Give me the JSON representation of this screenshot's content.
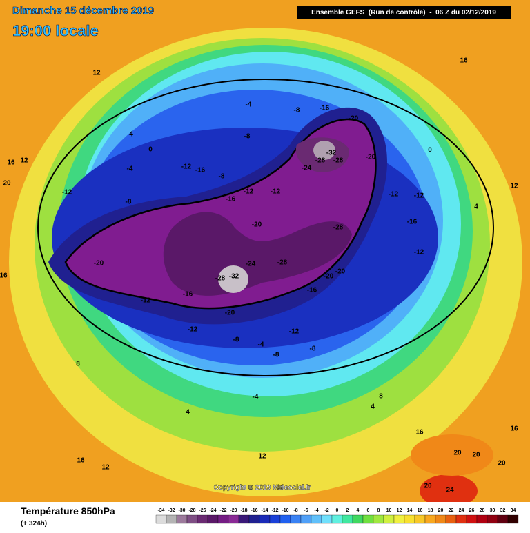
{
  "header": {
    "date": "Dimanche 15 décembre 2019",
    "time": "19:00 locale",
    "run": "Ensemble GEFS  (Run de contrôle)  -  06 Z du 02/12/2019"
  },
  "footer": {
    "parameter": "Température 850hPa",
    "lead": "(+ 324h)",
    "copyright": "Copyright © 2019 Meteociel.fr"
  },
  "legend": {
    "values": [
      -34,
      -32,
      -30,
      -28,
      -26,
      -24,
      -22,
      -20,
      -18,
      -16,
      -14,
      -12,
      -10,
      -8,
      -6,
      -4,
      -2,
      0,
      2,
      4,
      6,
      8,
      10,
      12,
      14,
      16,
      18,
      20,
      22,
      24,
      26,
      28,
      30,
      32,
      34
    ],
    "colors": [
      "#dcdcdc",
      "#b4b4b4",
      "#9c7a9c",
      "#7e4e84",
      "#6a2a72",
      "#5a1868",
      "#741c84",
      "#8a2a96",
      "#3a1878",
      "#202090",
      "#1a2ab8",
      "#1a40d8",
      "#2060f0",
      "#3a82f4",
      "#50a0f8",
      "#60c0fa",
      "#70e0fc",
      "#60f0e0",
      "#40e8a0",
      "#40d860",
      "#70e040",
      "#a0e840",
      "#d0f040",
      "#f0f040",
      "#f8e030",
      "#f8c828",
      "#f8a820",
      "#f08818",
      "#e86010",
      "#e03010",
      "#d01010",
      "#b00010",
      "#900010",
      "#600010",
      "#300000"
    ]
  },
  "contour_labels": [
    16,
    12,
    20,
    12,
    16,
    12,
    4,
    -4,
    -8,
    -16,
    -20,
    -32,
    -28,
    -28,
    -24,
    -20,
    -12,
    -12,
    -16,
    -12,
    -28,
    -28,
    -24,
    -20,
    -20,
    -16,
    -32,
    -28,
    -20,
    -16,
    -12,
    -12,
    -20,
    -20,
    -16,
    -12,
    -12,
    -8,
    -8,
    -12,
    -16,
    -8,
    -12,
    -8,
    -4,
    -12,
    -8,
    -4,
    4,
    16,
    12,
    12,
    16,
    20,
    20,
    20,
    24,
    20,
    16,
    0,
    4,
    0,
    -4,
    16,
    8,
    4,
    8,
    -8,
    -12
  ]
}
